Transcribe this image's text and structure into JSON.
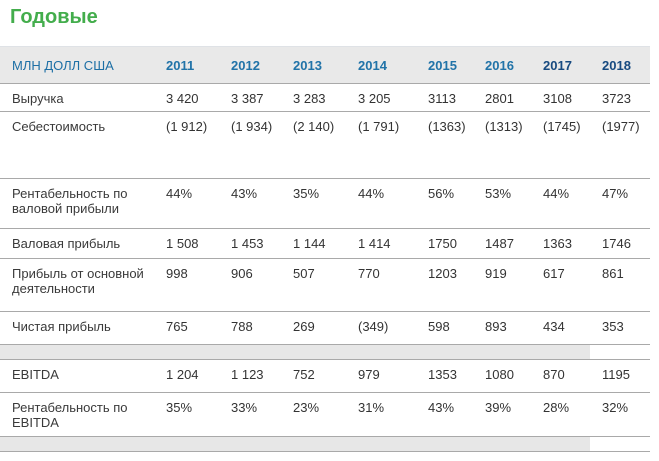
{
  "title": "Годовые",
  "table": {
    "header": {
      "label": "МЛН ДОЛЛ США",
      "years": [
        "2011",
        "2012",
        "2013",
        "2014",
        "2015",
        "2016",
        "2017",
        "2018"
      ]
    },
    "rows": [
      {
        "label": "Выручка",
        "values": [
          "3 420",
          "3 387",
          "3 283",
          "3 205",
          "3113",
          "2801",
          "3108",
          "3723"
        ]
      },
      {
        "label": "Себестоимость",
        "values": [
          "(1 912)",
          "(1 934)",
          "(2 140)",
          "(1 791)",
          "(1363)",
          "(1313)",
          "(1745)",
          "(1977)"
        ]
      },
      {
        "label": "Рентабельность по валовой прибыли",
        "values": [
          "44%",
          "43%",
          "35%",
          "44%",
          "56%",
          "53%",
          "44%",
          "47%"
        ]
      },
      {
        "label": "Валовая прибыль",
        "values": [
          "1 508",
          "1 453",
          "1 144",
          "1 414",
          "1750",
          "1487",
          "1363",
          "1746"
        ]
      },
      {
        "label": "Прибыль от основной деятельности",
        "values": [
          "998",
          "906",
          "507",
          "770",
          "1203",
          "919",
          "617",
          "861"
        ]
      },
      {
        "label": "Чистая прибыль",
        "values": [
          "765",
          "788",
          "269",
          "(349)",
          "598",
          "893",
          "434",
          "353"
        ]
      },
      {
        "label": "EBITDA",
        "values": [
          "1 204",
          "1 123",
          "752",
          "979",
          "1353",
          "1080",
          "870",
          "1195"
        ]
      },
      {
        "label": "Рентабельность по EBITDA",
        "values": [
          "35%",
          "33%",
          "23%",
          "31%",
          "43%",
          "39%",
          "28%",
          "32%"
        ]
      }
    ]
  },
  "chart_data": {
    "type": "table",
    "title": "Годовые",
    "unit_label": "МЛН ДОЛЛ США",
    "categories": [
      "2011",
      "2012",
      "2013",
      "2014",
      "2015",
      "2016",
      "2017",
      "2018"
    ],
    "series": [
      {
        "name": "Выручка",
        "unit": "млн долл США",
        "values": [
          3420,
          3387,
          3283,
          3205,
          3113,
          2801,
          3108,
          3723
        ]
      },
      {
        "name": "Себестоимость",
        "unit": "млн долл США",
        "values": [
          -1912,
          -1934,
          -2140,
          -1791,
          -1363,
          -1313,
          -1745,
          -1977
        ]
      },
      {
        "name": "Рентабельность по валовой прибыли",
        "unit": "%",
        "values": [
          44,
          43,
          35,
          44,
          56,
          53,
          44,
          47
        ]
      },
      {
        "name": "Валовая прибыль",
        "unit": "млн долл США",
        "values": [
          1508,
          1453,
          1144,
          1414,
          1750,
          1487,
          1363,
          1746
        ]
      },
      {
        "name": "Прибыль от основной деятельности",
        "unit": "млн долл США",
        "values": [
          998,
          906,
          507,
          770,
          1203,
          919,
          617,
          861
        ]
      },
      {
        "name": "Чистая прибыль",
        "unit": "млн долл США",
        "values": [
          765,
          788,
          269,
          -349,
          598,
          893,
          434,
          353
        ]
      },
      {
        "name": "EBITDA",
        "unit": "млн долл США",
        "values": [
          1204,
          1123,
          752,
          979,
          1353,
          1080,
          870,
          1195
        ]
      },
      {
        "name": "Рентабельность по EBITDA",
        "unit": "%",
        "values": [
          35,
          33,
          23,
          31,
          43,
          39,
          28,
          32
        ]
      }
    ]
  },
  "colors": {
    "title_green": "#43ad4c",
    "header_blue": "#1d6fa5",
    "year_blue": "#2173a8",
    "year_dark_blue": "#174a80",
    "header_bg": "#e9e9e9",
    "line_gray": "#a9a9a9",
    "band_gray": "#e7e7e7",
    "text": "#333333"
  }
}
